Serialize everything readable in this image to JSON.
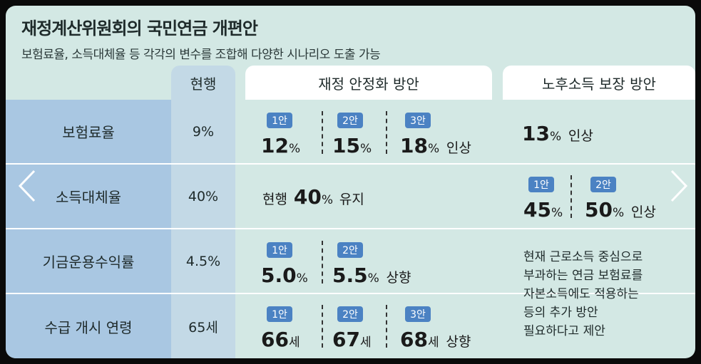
{
  "title": "재정계산위원회의 국민연금 개편안",
  "subtitle": "보험료율, 소득대체율 등 각각의 변수를 조합해 다양한 시나리오 도출 가능",
  "headers": {
    "current": "현행",
    "fiscal": "재정 안정화 방안",
    "income": "노후소득 보장 방안"
  },
  "rows": {
    "premium": {
      "label": "보험료율",
      "current": "9%",
      "fiscal": {
        "b1": "1안",
        "v1": "12",
        "u1": "%",
        "b2": "2안",
        "v2": "15",
        "u2": "%",
        "b3": "3안",
        "v3": "18",
        "u3": "%",
        "suffix": "인상"
      },
      "income": {
        "v": "13",
        "u": "%",
        "suffix": "인상"
      }
    },
    "replacement": {
      "label": "소득대체율",
      "current": "40%",
      "fiscal": {
        "prefix": "현행",
        "v": "40",
        "u": "%",
        "suffix": "유지"
      },
      "income": {
        "b1": "1안",
        "v1": "45",
        "u1": "%",
        "b2": "2안",
        "v2": "50",
        "u2": "%",
        "suffix": "인상"
      }
    },
    "fund": {
      "label": "기금운용수익률",
      "current": "4.5%",
      "fiscal": {
        "b1": "1안",
        "v1": "5.0",
        "u1": "%",
        "b2": "2안",
        "v2": "5.5",
        "u2": "%",
        "suffix": "상향"
      }
    },
    "age": {
      "label": "수급 개시 연령",
      "current": "65세",
      "fiscal": {
        "b1": "1안",
        "v1": "66",
        "u1": "세",
        "b2": "2안",
        "v2": "67",
        "u2": "세",
        "b3": "3안",
        "v3": "68",
        "u3": "세",
        "suffix": "상향"
      }
    }
  },
  "income_note": [
    "현재 근로소득 중심으로",
    "부과하는 연금 보험료를",
    "자본소득에도 적용하는",
    "등의 추가 방안",
    "필요하다고 제안"
  ],
  "nav": {
    "prev": "previous-arrow",
    "next": "next-arrow"
  },
  "colors": {
    "background": "#d3e8e4",
    "row_label": "#a9c7e2",
    "current_col": "#c3d9e6",
    "badge": "#4b82c3"
  }
}
